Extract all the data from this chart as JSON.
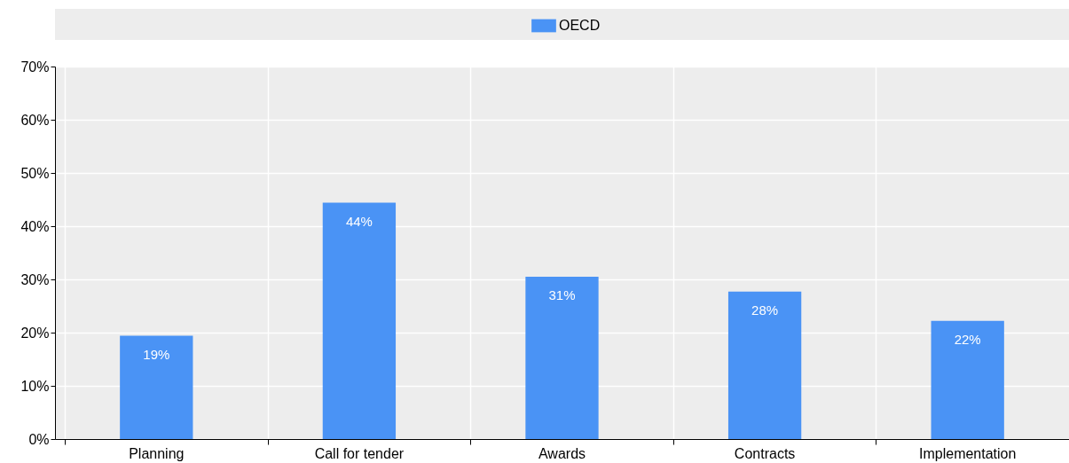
{
  "chart_data": {
    "type": "bar",
    "categories": [
      "Planning",
      "Call for tender",
      "Awards",
      "Contracts",
      "Implementation"
    ],
    "series": [
      {
        "name": "OECD",
        "color": "#4a93f5",
        "values": [
          19.4,
          44.4,
          30.5,
          27.7,
          22.2
        ],
        "value_labels": [
          "19%",
          "44%",
          "31%",
          "28%",
          "22%"
        ]
      }
    ],
    "ylim": [
      0,
      70
    ],
    "yticks": [
      {
        "value": 0,
        "label": "0%"
      },
      {
        "value": 10,
        "label": "10%"
      },
      {
        "value": 20,
        "label": "20%"
      },
      {
        "value": 30,
        "label": "30%"
      },
      {
        "value": 40,
        "label": "40%"
      },
      {
        "value": 50,
        "label": "50%"
      },
      {
        "value": 60,
        "label": "60%"
      },
      {
        "value": 70,
        "label": "70%"
      }
    ],
    "grid": true,
    "legend": "top"
  }
}
